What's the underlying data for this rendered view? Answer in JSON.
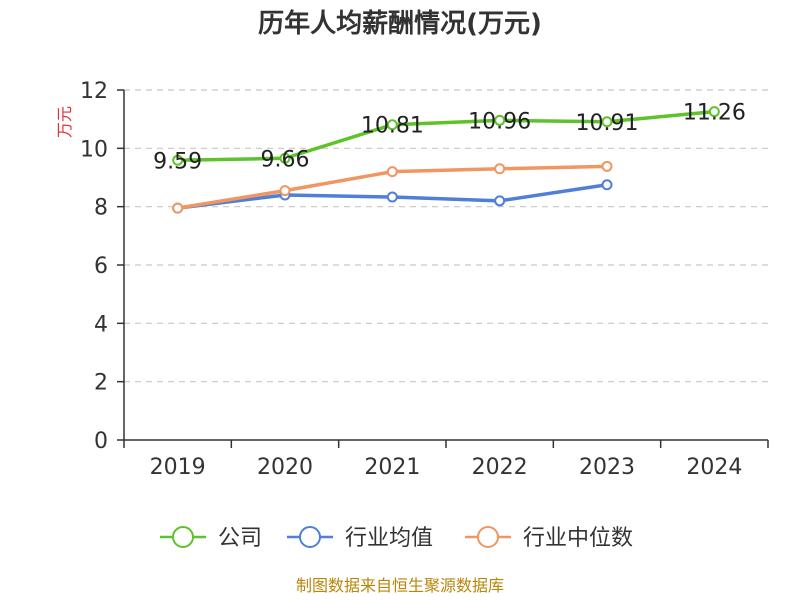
{
  "chart_data": {
    "type": "line",
    "title": "历年人均薪酬情况(万元)",
    "ylabel": "万元",
    "xlabel": "",
    "categories": [
      "2019",
      "2020",
      "2021",
      "2022",
      "2023",
      "2024"
    ],
    "ylim": [
      0,
      12
    ],
    "yticks": [
      0,
      2,
      4,
      6,
      8,
      10,
      12
    ],
    "grid": true,
    "legend_position": "bottom",
    "series": [
      {
        "name": "公司",
        "color": "#5ec22a",
        "values": [
          9.59,
          9.66,
          10.81,
          10.96,
          10.91,
          11.26
        ],
        "labels": [
          "9.59",
          "9.66",
          "10.81",
          "10.96",
          "10.91",
          "11.26"
        ]
      },
      {
        "name": "行业均值",
        "color": "#4f7fd8",
        "values": [
          7.95,
          8.4,
          8.33,
          8.2,
          8.75,
          null
        ]
      },
      {
        "name": "行业中位数",
        "color": "#f09660",
        "values": [
          7.95,
          8.55,
          9.2,
          9.3,
          9.38,
          null
        ]
      }
    ],
    "source": "制图数据来自恒生聚源数据库"
  }
}
